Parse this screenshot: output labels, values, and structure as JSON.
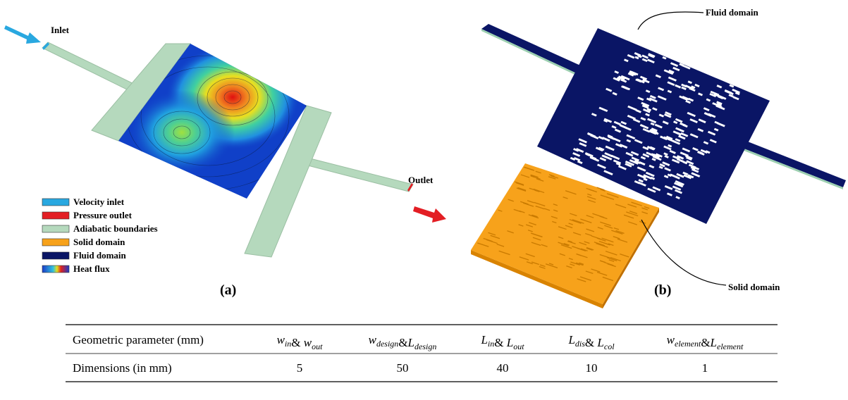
{
  "panel_a": {
    "inlet": "Inlet",
    "outlet": "Outlet",
    "caption": "(a)",
    "legend": [
      "Velocity inlet",
      "Pressure outlet",
      "Adiabatic boundaries",
      "Solid domain",
      "Fluid domain",
      "Heat flux"
    ]
  },
  "panel_b": {
    "fluid_label": "Fluid domain",
    "solid_label": "Solid domain",
    "caption": "(b)"
  },
  "table": {
    "header": [
      "Geometric parameter (mm)",
      [
        {
          "t": "w",
          "sub": "in"
        },
        {
          "t": "& "
        },
        {
          "t": "w",
          "sub": "out"
        }
      ],
      [
        {
          "t": "w",
          "sub": "design"
        },
        {
          "t": "&"
        },
        {
          "t": "L",
          "sub": "design"
        }
      ],
      [
        {
          "t": "L",
          "sub": "in"
        },
        {
          "t": "& "
        },
        {
          "t": "L",
          "sub": "out"
        }
      ],
      [
        {
          "t": "L",
          "sub": "dis"
        },
        {
          "t": "& "
        },
        {
          "t": "L",
          "sub": "col"
        }
      ],
      [
        {
          "t": "w",
          "sub": "element"
        },
        {
          "t": "&"
        },
        {
          "t": "L",
          "sub": "element"
        }
      ]
    ],
    "rows": [
      [
        "Dimensions (in mm)",
        5,
        50,
        40,
        10,
        1
      ]
    ]
  }
}
